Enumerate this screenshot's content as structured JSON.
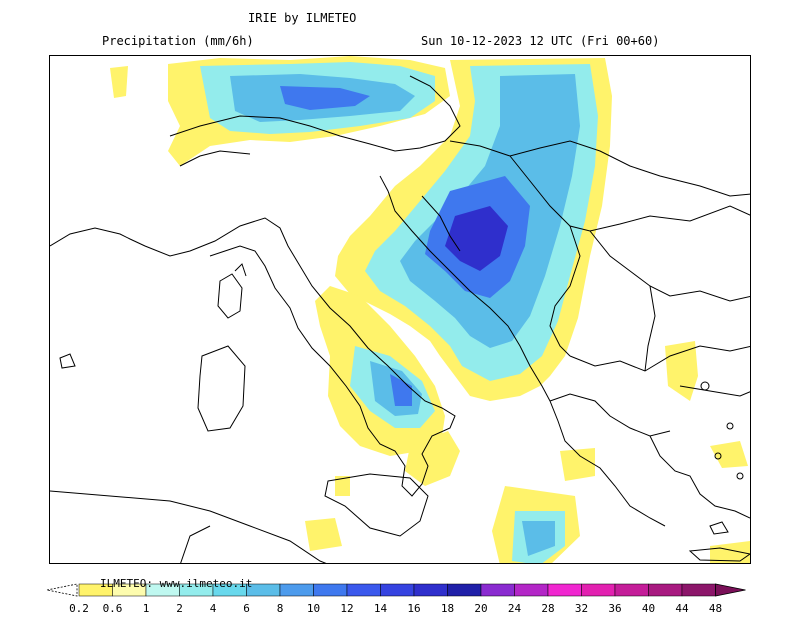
{
  "header": {
    "model_title": "IRIE by ILMETEO",
    "field": "Precipitation (mm/6h)",
    "valid_time": "Sun 10-12-2023 12 UTC (Fri 00+60)"
  },
  "watermark": "ILMETEO: www.ilmeteo.it",
  "legend": {
    "levels": [
      "0.2",
      "0.6",
      "1",
      "2",
      "4",
      "6",
      "8",
      "10",
      "12",
      "14",
      "16",
      "18",
      "20",
      "24",
      "28",
      "32",
      "36",
      "40",
      "44",
      "48"
    ],
    "colors": [
      "#fff36b",
      "#fdfcae",
      "#bff8f0",
      "#93ecec",
      "#68d8ec",
      "#5bbde8",
      "#4d9bec",
      "#3f78ee",
      "#3a58ec",
      "#3543e0",
      "#2f2fcc",
      "#2020a8",
      "#8a2bd0",
      "#b326c7",
      "#f026d0",
      "#e221b0",
      "#c41d99",
      "#a81a80",
      "#8c166a",
      "#7a1058"
    ]
  }
}
